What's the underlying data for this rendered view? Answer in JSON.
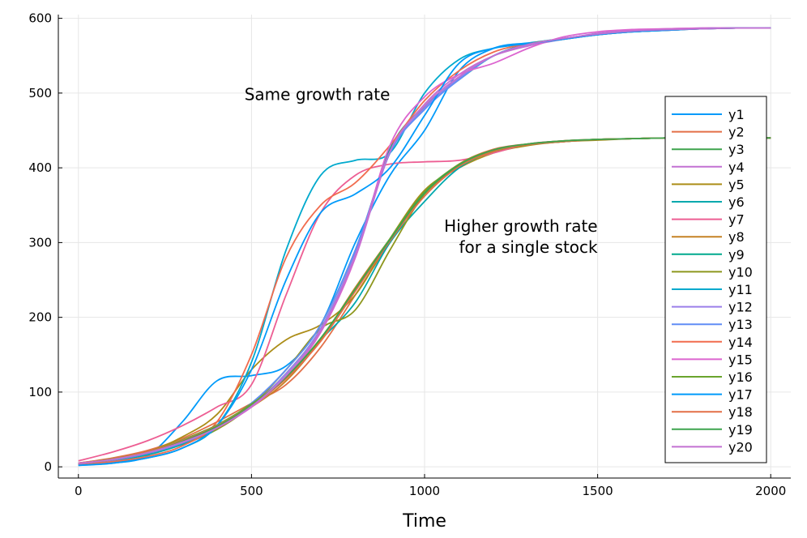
{
  "chart_data": {
    "type": "line",
    "title": "",
    "xlabel": "Time",
    "ylabel": "",
    "xlim": [
      -58,
      2058
    ],
    "ylim": [
      -15,
      605
    ],
    "grid": true,
    "legend_position": "bottom-right",
    "xticks": [
      0,
      500,
      1000,
      1500,
      2000
    ],
    "yticks": [
      0,
      100,
      200,
      300,
      400,
      500,
      600
    ],
    "annotations": [
      {
        "text": [
          "Same growth rate"
        ],
        "x": 690,
        "y": 498,
        "align": "center"
      },
      {
        "text": [
          "Higher growth rate",
          "for a single stock"
        ],
        "x": 1500,
        "y": 308,
        "align": "right"
      }
    ],
    "x": [
      0,
      100,
      200,
      300,
      400,
      500,
      600,
      700,
      800,
      900,
      1000,
      1100,
      1200,
      1300,
      1400,
      1500,
      1600,
      1700,
      1800,
      1900,
      2000
    ],
    "series": [
      {
        "name": "y1",
        "color": "#009AFA",
        "values": [
          2,
          5,
          15,
          60,
          115,
          122,
          135,
          190,
          300,
          390,
          450,
          530,
          560,
          567,
          572,
          578,
          582,
          584,
          586,
          587,
          587
        ]
      },
      {
        "name": "y2",
        "color": "#E36F47",
        "values": [
          5,
          12,
          22,
          38,
          60,
          85,
          110,
          160,
          230,
          300,
          365,
          405,
          425,
          432,
          436,
          438,
          439,
          440,
          440,
          440,
          440
        ]
      },
      {
        "name": "y3",
        "color": "#3EA44E",
        "values": [
          4,
          10,
          20,
          35,
          55,
          85,
          130,
          190,
          290,
          420,
          480,
          520,
          550,
          565,
          573,
          579,
          583,
          585,
          586,
          587,
          587
        ]
      },
      {
        "name": "y4",
        "color": "#C371D2",
        "values": [
          5,
          11,
          20,
          34,
          52,
          80,
          120,
          180,
          280,
          420,
          485,
          525,
          550,
          563,
          572,
          580,
          584,
          586,
          587,
          587,
          587
        ]
      },
      {
        "name": "y5",
        "color": "#AC8D18",
        "values": [
          4,
          10,
          20,
          40,
          70,
          130,
          170,
          190,
          230,
          305,
          370,
          400,
          420,
          430,
          435,
          437,
          439,
          440,
          440,
          440,
          440
        ]
      },
      {
        "name": "y6",
        "color": "#00A9AD",
        "values": [
          3,
          8,
          16,
          30,
          50,
          85,
          120,
          170,
          220,
          300,
          355,
          400,
          422,
          431,
          435,
          438,
          439,
          440,
          440,
          440,
          440
        ]
      },
      {
        "name": "y7",
        "color": "#ED5E93",
        "values": [
          8,
          20,
          35,
          55,
          80,
          110,
          230,
          340,
          390,
          405,
          408,
          410,
          420,
          432,
          436,
          438,
          439,
          440,
          440,
          440,
          440
        ]
      },
      {
        "name": "y8",
        "color": "#C68225",
        "values": [
          5,
          11,
          20,
          35,
          55,
          80,
          115,
          170,
          240,
          305,
          365,
          402,
          422,
          431,
          435,
          438,
          439,
          440,
          440,
          440,
          440
        ]
      },
      {
        "name": "y9",
        "color": "#00A98D",
        "values": [
          4,
          10,
          19,
          33,
          52,
          82,
          125,
          185,
          285,
          425,
          482,
          518,
          550,
          566,
          573,
          579,
          583,
          585,
          586,
          587,
          587
        ]
      },
      {
        "name": "y10",
        "color": "#8E971E",
        "values": [
          4,
          10,
          18,
          32,
          50,
          82,
          130,
          185,
          210,
          290,
          365,
          405,
          424,
          432,
          436,
          438,
          439,
          440,
          440,
          440,
          440
        ]
      },
      {
        "name": "y11",
        "color": "#00A9CD",
        "values": [
          3,
          6,
          12,
          25,
          55,
          140,
          290,
          390,
          410,
          420,
          500,
          545,
          560,
          566,
          572,
          578,
          582,
          584,
          586,
          587,
          587
        ]
      },
      {
        "name": "y12",
        "color": "#9B7FE9",
        "values": [
          4,
          9,
          18,
          32,
          52,
          82,
          125,
          185,
          285,
          420,
          480,
          520,
          550,
          565,
          573,
          579,
          583,
          585,
          586,
          587,
          587
        ]
      },
      {
        "name": "y13",
        "color": "#618DF6",
        "values": [
          4,
          9,
          18,
          32,
          52,
          85,
          130,
          190,
          290,
          420,
          478,
          518,
          550,
          565,
          573,
          579,
          583,
          585,
          586,
          587,
          587
        ]
      },
      {
        "name": "y14",
        "color": "#F16C4E",
        "values": [
          3,
          7,
          14,
          28,
          60,
          150,
          280,
          350,
          380,
          430,
          490,
          530,
          555,
          566,
          572,
          578,
          582,
          584,
          586,
          587,
          587
        ]
      },
      {
        "name": "y15",
        "color": "#DC65CF",
        "values": [
          5,
          10,
          19,
          33,
          52,
          80,
          120,
          180,
          280,
          430,
          495,
          525,
          540,
          560,
          575,
          582,
          585,
          586,
          587,
          587,
          587
        ]
      },
      {
        "name": "y16",
        "color": "#6AA42D",
        "values": [
          4,
          10,
          20,
          36,
          56,
          84,
          120,
          172,
          238,
          305,
          368,
          404,
          423,
          431,
          435,
          438,
          439,
          440,
          440,
          440,
          440
        ]
      },
      {
        "name": "y17",
        "color": "#009AFA",
        "values": [
          2,
          5,
          12,
          25,
          55,
          130,
          250,
          340,
          365,
          400,
          470,
          540,
          560,
          566,
          572,
          578,
          582,
          584,
          586,
          587,
          587
        ]
      },
      {
        "name": "y18",
        "color": "#E36F47",
        "values": [
          4,
          10,
          20,
          35,
          55,
          82,
          118,
          168,
          235,
          302,
          362,
          402,
          423,
          431,
          435,
          438,
          439,
          440,
          440,
          440,
          440
        ]
      },
      {
        "name": "y19",
        "color": "#3EA44E",
        "values": [
          4,
          10,
          19,
          34,
          54,
          82,
          120,
          172,
          238,
          304,
          366,
          404,
          424,
          432,
          436,
          438,
          439,
          440,
          440,
          440,
          440
        ]
      },
      {
        "name": "y20",
        "color": "#C371D2",
        "values": [
          4,
          10,
          19,
          33,
          52,
          81,
          122,
          182,
          282,
          422,
          483,
          522,
          550,
          565,
          573,
          579,
          583,
          585,
          586,
          587,
          587
        ]
      }
    ]
  }
}
